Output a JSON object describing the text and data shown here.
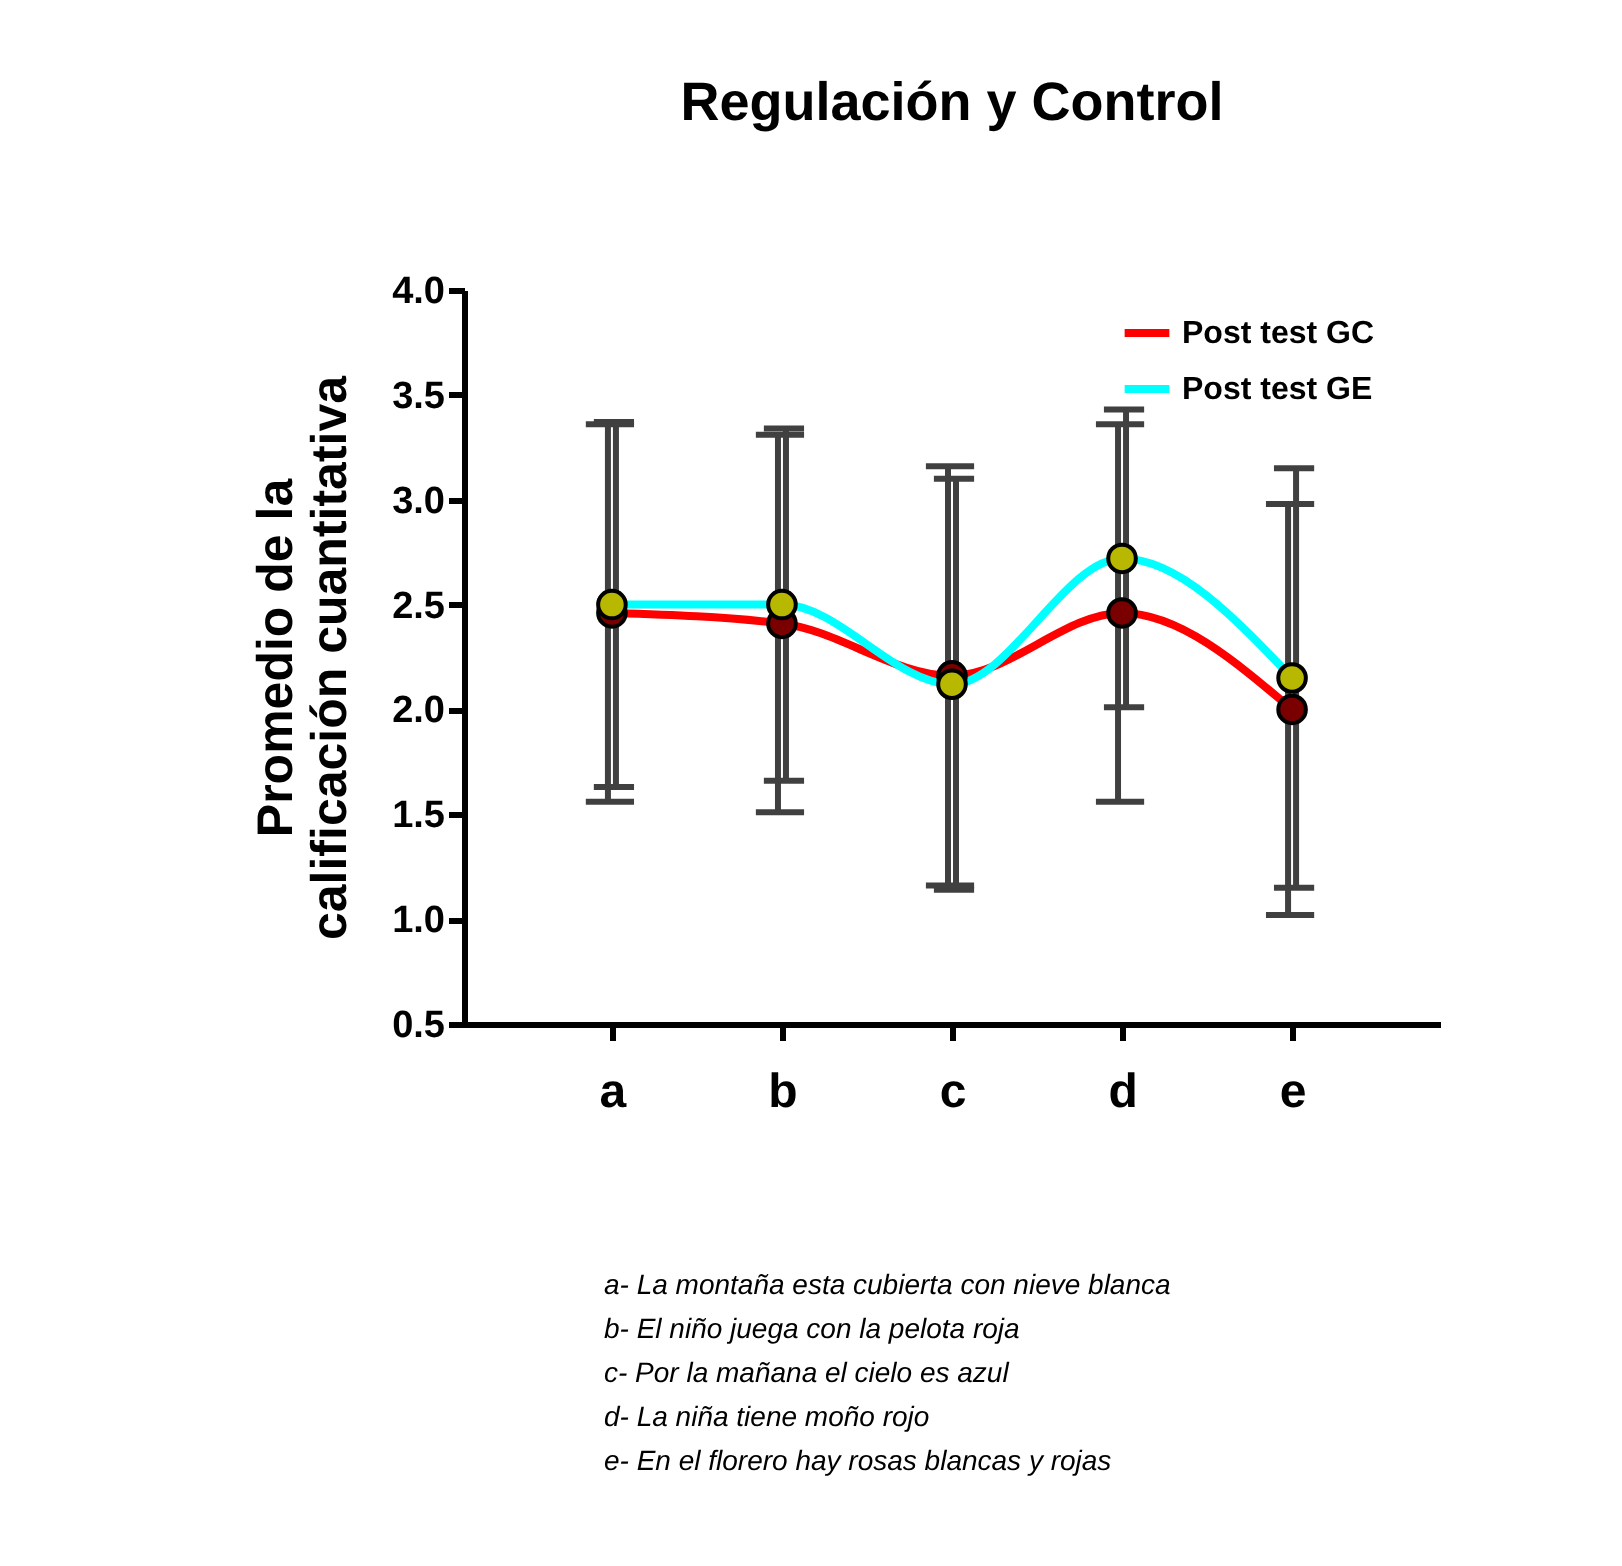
{
  "chart_data": {
    "type": "line",
    "title": "Regulación y Control",
    "ylabel": "Promedio de la\ncalificación cuantitativa",
    "categories": [
      "a",
      "b",
      "c",
      "d",
      "e"
    ],
    "series": [
      {
        "name": "Post test GC",
        "color": "#ff0000",
        "values": [
          2.46,
          2.41,
          2.16,
          2.46,
          2.0
        ],
        "errors": [
          0.9,
          0.9,
          1.0,
          0.9,
          0.98
        ]
      },
      {
        "name": "Post test  GE",
        "color": "#00ffff",
        "values": [
          2.5,
          2.5,
          2.12,
          2.72,
          2.15
        ],
        "errors": [
          0.87,
          0.84,
          0.98,
          0.71,
          1.0
        ]
      }
    ],
    "ylim": [
      0.5,
      4.0
    ],
    "yticks": [
      0.5,
      {
        "value": 1,
        "label": "1.0"
      },
      1.5,
      {
        "value": 2,
        "label": "2.0"
      },
      2.5,
      {
        "value": 3,
        "label": "3.0"
      },
      3.5,
      {
        "value": 4,
        "label": "4.0"
      }
    ],
    "marker": "circle",
    "line_style": "solid",
    "grid": false,
    "legend": "top right",
    "annotations": [
      "a- La montaña esta cubierta con nieve blanca",
      "b- El niño juega con la pelota roja",
      "c- Por la mañana el cielo es azul",
      "d- La niña tiene moño rojo",
      "e- En el florero hay rosas blancas y rojas"
    ]
  }
}
